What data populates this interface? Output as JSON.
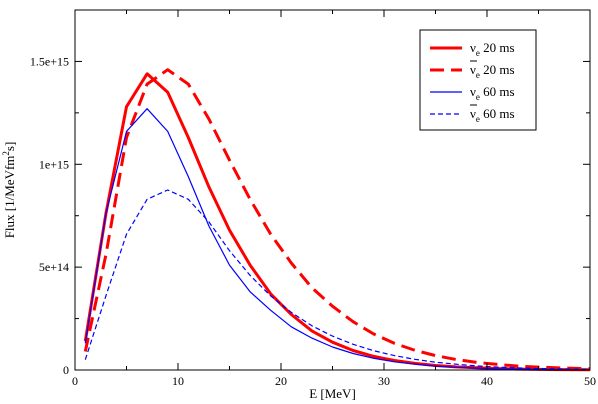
{
  "chart_data": {
    "type": "line",
    "xlabel": "E [MeV]",
    "ylabel_main": "Flux [1/MeVfm",
    "ylabel_sup": "2",
    "ylabel_end": "s]",
    "xlim": [
      0,
      50
    ],
    "ylim": [
      0,
      1750000000000000.0
    ],
    "xticks": [
      0,
      10,
      20,
      30,
      40,
      50
    ],
    "xtick_labels": [
      "0",
      "10",
      "20",
      "30",
      "40",
      "50"
    ],
    "yticks": [
      0,
      500000000000000.0,
      1000000000000000.0,
      1500000000000000.0
    ],
    "ytick_labels": [
      "0",
      "5e+14",
      "1e+15",
      "1.5e+15"
    ],
    "grid": false,
    "legend_position": "top-right",
    "series": [
      {
        "symbol": "ν",
        "subscript": "e",
        "bar": false,
        "time": "20 ms",
        "color": "#ff0000",
        "style": "solid",
        "weight": "thick",
        "x": [
          1,
          3,
          5,
          7,
          9,
          11,
          13,
          15,
          17,
          19,
          21,
          23,
          25,
          27,
          29,
          31,
          33,
          35,
          37,
          39,
          41,
          43,
          45,
          47,
          50
        ],
        "y": [
          140000000000000.0,
          760000000000000.0,
          1280000000000000.0,
          1440000000000000.0,
          1350000000000000.0,
          1130000000000000.0,
          890000000000000.0,
          680000000000000.0,
          510000000000000.0,
          370000000000000.0,
          270000000000000.0,
          190000000000000.0,
          135000000000000.0,
          95000000000000.0,
          66000000000000.0,
          46000000000000.0,
          32000000000000.0,
          22000000000000.0,
          15000000000000.0,
          10500000000000.0,
          7000000000000.0,
          4500000000000.0,
          3000000000000.0,
          2000000000000.0,
          1000000000000.0
        ]
      },
      {
        "symbol": "ν",
        "subscript": "e",
        "bar": true,
        "time": "20 ms",
        "color": "#ff0000",
        "style": "dashed",
        "weight": "thick",
        "x": [
          1,
          3,
          5,
          7,
          9,
          11,
          13,
          15,
          17,
          19,
          21,
          23,
          25,
          27,
          29,
          31,
          33,
          35,
          37,
          39,
          41,
          43,
          45,
          47,
          50
        ],
        "y": [
          90000000000000.0,
          560000000000000.0,
          1130000000000000.0,
          1390000000000000.0,
          1460000000000000.0,
          1390000000000000.0,
          1220000000000000.0,
          1020000000000000.0,
          830000000000000.0,
          660000000000000.0,
          520000000000000.0,
          400000000000000.0,
          310000000000000.0,
          235000000000000.0,
          175000000000000.0,
          130000000000000.0,
          96000000000000.0,
          70000000000000.0,
          51000000000000.0,
          37000000000000.0,
          27000000000000.0,
          19000000000000.0,
          14000000000000.0,
          10000000000000.0,
          6000000000000.0
        ]
      },
      {
        "symbol": "ν",
        "subscript": "e",
        "bar": false,
        "time": "60 ms",
        "color": "#0000ff",
        "style": "solid",
        "weight": "thin",
        "x": [
          1,
          3,
          5,
          7,
          9,
          11,
          13,
          15,
          17,
          19,
          21,
          23,
          25,
          27,
          29,
          31,
          33,
          35,
          37,
          39,
          41,
          43,
          45,
          47,
          50
        ],
        "y": [
          130000000000000.0,
          760000000000000.0,
          1160000000000000.0,
          1270000000000000.0,
          1160000000000000.0,
          940000000000000.0,
          700000000000000.0,
          510000000000000.0,
          380000000000000.0,
          290000000000000.0,
          210000000000000.0,
          155000000000000.0,
          112000000000000.0,
          80000000000000.0,
          57000000000000.0,
          40000000000000.0,
          28000000000000.0,
          19000000000000.0,
          13000000000000.0,
          9000000000000.0,
          6000000000000.0,
          4000000000000.0,
          2700000000000.0,
          1800000000000.0,
          1000000000000.0
        ]
      },
      {
        "symbol": "ν",
        "subscript": "e",
        "bar": true,
        "time": "60 ms",
        "color": "#0000ff",
        "style": "dashed",
        "weight": "thin",
        "x": [
          1,
          3,
          5,
          7,
          9,
          11,
          13,
          15,
          17,
          19,
          21,
          23,
          25,
          27,
          29,
          31,
          33,
          35,
          37,
          39,
          41,
          43,
          45,
          47,
          50
        ],
        "y": [
          50000000000000.0,
          360000000000000.0,
          660000000000000.0,
          830000000000000.0,
          875000000000000.0,
          830000000000000.0,
          720000000000000.0,
          580000000000000.0,
          460000000000000.0,
          360000000000000.0,
          280000000000000.0,
          215000000000000.0,
          165000000000000.0,
          125000000000000.0,
          94000000000000.0,
          70000000000000.0,
          52000000000000.0,
          38000000000000.0,
          28000000000000.0,
          20000000000000.0,
          14000000000000.0,
          10000000000000.0,
          7000000000000.0,
          5000000000000.0,
          3000000000000.0
        ]
      }
    ]
  }
}
